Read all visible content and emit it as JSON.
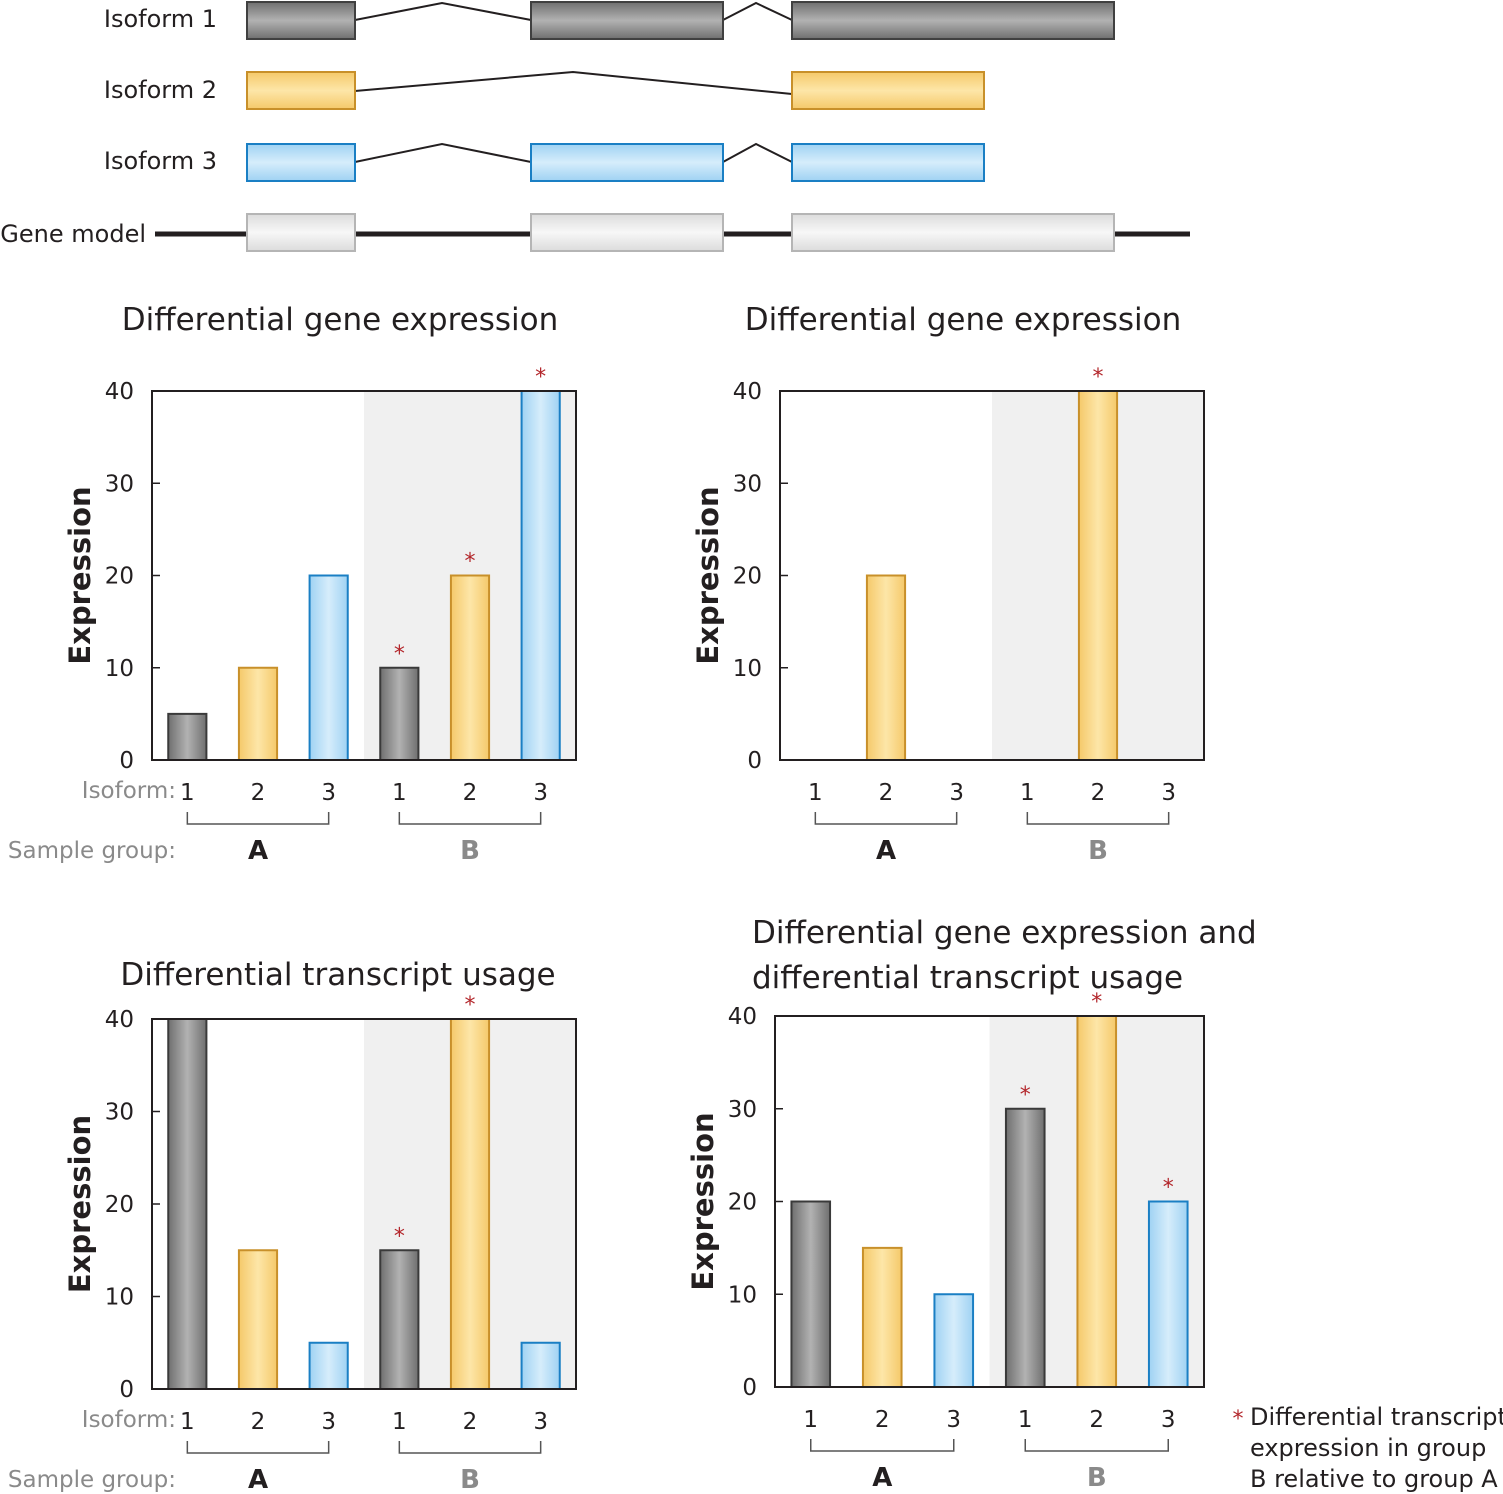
{
  "structure": {
    "isoform_labels": [
      "Isoform 1",
      "Isoform 2",
      "Isoform 3"
    ],
    "gene_model_label": "Gene model"
  },
  "labels": {
    "ylabel": "Expression",
    "isoform_row": "Isoform:",
    "sample_row": "Sample group:",
    "group_a": "A",
    "group_b": "B",
    "star": "*",
    "legend_lines": [
      "Differential transcript",
      "expression in group",
      "B relative to group A"
    ]
  },
  "colors": {
    "isoform_1": "#8c8c8c",
    "isoform_2": "#f5c96a",
    "isoform_3": "#9fd2f3",
    "star": "#b3262b",
    "group_b_shade": "#f0f0f0"
  },
  "chart_data": [
    {
      "type": "bar",
      "title": "Differential gene expression",
      "ylabel": "Expression",
      "ylim": [
        0,
        40
      ],
      "yticks": [
        0,
        10,
        20,
        30,
        40
      ],
      "categories": [
        "1",
        "2",
        "3",
        "1",
        "2",
        "3"
      ],
      "groups": [
        "A",
        "A",
        "A",
        "B",
        "B",
        "B"
      ],
      "isoforms": [
        1,
        2,
        3,
        1,
        2,
        3
      ],
      "values": [
        5,
        10,
        20,
        10,
        20,
        40
      ],
      "significant": [
        false,
        false,
        false,
        true,
        true,
        true
      ],
      "show_row_labels": true
    },
    {
      "type": "bar",
      "title": "Differential gene expression",
      "ylabel": "Expression",
      "ylim": [
        0,
        40
      ],
      "yticks": [
        0,
        10,
        20,
        30,
        40
      ],
      "categories": [
        "1",
        "2",
        "3",
        "1",
        "2",
        "3"
      ],
      "groups": [
        "A",
        "A",
        "A",
        "B",
        "B",
        "B"
      ],
      "isoforms": [
        1,
        2,
        3,
        1,
        2,
        3
      ],
      "values": [
        0,
        20,
        0,
        0,
        40,
        0
      ],
      "significant": [
        false,
        false,
        false,
        false,
        true,
        false
      ],
      "show_row_labels": false
    },
    {
      "type": "bar",
      "title": "Differential transcript usage",
      "ylabel": "Expression",
      "ylim": [
        0,
        40
      ],
      "yticks": [
        0,
        10,
        20,
        30,
        40
      ],
      "categories": [
        "1",
        "2",
        "3",
        "1",
        "2",
        "3"
      ],
      "groups": [
        "A",
        "A",
        "A",
        "B",
        "B",
        "B"
      ],
      "isoforms": [
        1,
        2,
        3,
        1,
        2,
        3
      ],
      "values": [
        40,
        15,
        5,
        15,
        40,
        5
      ],
      "significant": [
        false,
        false,
        false,
        true,
        true,
        false
      ],
      "show_row_labels": true
    },
    {
      "type": "bar",
      "title": [
        "Differential gene expression and",
        "differential transcript usage"
      ],
      "ylabel": "Expression",
      "ylim": [
        0,
        40
      ],
      "yticks": [
        0,
        10,
        20,
        30,
        40
      ],
      "categories": [
        "1",
        "2",
        "3",
        "1",
        "2",
        "3"
      ],
      "groups": [
        "A",
        "A",
        "A",
        "B",
        "B",
        "B"
      ],
      "isoforms": [
        1,
        2,
        3,
        1,
        2,
        3
      ],
      "values": [
        20,
        15,
        10,
        30,
        40,
        20
      ],
      "significant": [
        false,
        false,
        false,
        true,
        true,
        true
      ],
      "show_row_labels": false
    }
  ]
}
